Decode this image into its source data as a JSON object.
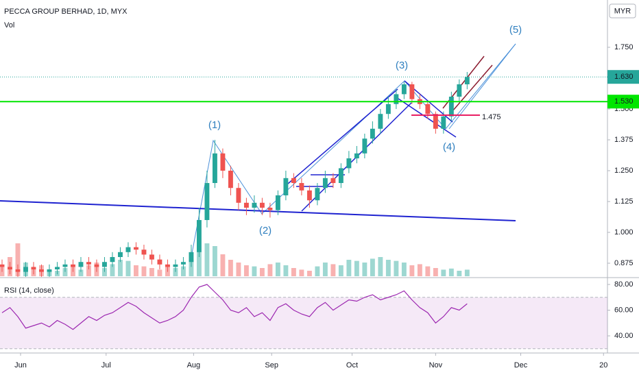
{
  "chart_data": {
    "type": "candlestick",
    "title": "PECCA GROUP BERHAD, 1D, MYX",
    "volume_label": "Vol",
    "currency": "MYR",
    "up_color": "#26a69a",
    "down_color": "#ef5350",
    "open": [
      0.87,
      0.86,
      0.85,
      0.84,
      0.86,
      0.85,
      0.84,
      0.85,
      0.86,
      0.87,
      0.86,
      0.88,
      0.87,
      0.86,
      0.88,
      0.9,
      0.92,
      0.94,
      0.93,
      0.91,
      0.89,
      0.87,
      0.86,
      0.87,
      0.88,
      0.92,
      1.05,
      1.2,
      1.32,
      1.25,
      1.18,
      1.12,
      1.1,
      1.12,
      1.1,
      1.09,
      1.15,
      1.22,
      1.2,
      1.17,
      1.13,
      1.18,
      1.22,
      1.2,
      1.26,
      1.3,
      1.32,
      1.38,
      1.42,
      1.48,
      1.52,
      1.56,
      1.6,
      1.54,
      1.52,
      1.48,
      1.42,
      1.47,
      1.55,
      1.6
    ],
    "high": [
      0.89,
      0.88,
      0.87,
      0.88,
      0.88,
      0.87,
      0.87,
      0.88,
      0.89,
      0.89,
      0.9,
      0.9,
      0.89,
      0.9,
      0.92,
      0.94,
      0.96,
      0.96,
      0.95,
      0.93,
      0.91,
      0.89,
      0.89,
      0.9,
      0.95,
      1.1,
      1.25,
      1.375,
      1.34,
      1.27,
      1.2,
      1.14,
      1.15,
      1.14,
      1.12,
      1.17,
      1.25,
      1.24,
      1.22,
      1.19,
      1.2,
      1.25,
      1.24,
      1.28,
      1.33,
      1.35,
      1.4,
      1.45,
      1.5,
      1.55,
      1.58,
      1.61,
      1.61,
      1.56,
      1.53,
      1.49,
      1.49,
      1.57,
      1.62,
      1.65
    ],
    "low": [
      0.84,
      0.83,
      0.82,
      0.82,
      0.83,
      0.82,
      0.82,
      0.83,
      0.84,
      0.84,
      0.84,
      0.85,
      0.84,
      0.84,
      0.86,
      0.88,
      0.9,
      0.91,
      0.89,
      0.87,
      0.85,
      0.84,
      0.84,
      0.85,
      0.86,
      0.9,
      1.02,
      1.18,
      1.22,
      1.15,
      1.09,
      1.07,
      1.08,
      1.07,
      1.06,
      1.07,
      1.13,
      1.18,
      1.15,
      1.1,
      1.11,
      1.16,
      1.18,
      1.18,
      1.24,
      1.28,
      1.3,
      1.36,
      1.4,
      1.46,
      1.5,
      1.54,
      1.52,
      1.5,
      1.46,
      1.4,
      1.4,
      1.45,
      1.53,
      1.58
    ],
    "close": [
      0.86,
      0.85,
      0.84,
      0.86,
      0.85,
      0.84,
      0.85,
      0.86,
      0.87,
      0.86,
      0.88,
      0.87,
      0.86,
      0.88,
      0.9,
      0.92,
      0.94,
      0.93,
      0.91,
      0.89,
      0.87,
      0.86,
      0.87,
      0.88,
      0.92,
      1.05,
      1.2,
      1.32,
      1.25,
      1.18,
      1.12,
      1.1,
      1.12,
      1.1,
      1.09,
      1.15,
      1.22,
      1.2,
      1.17,
      1.13,
      1.18,
      1.22,
      1.2,
      1.26,
      1.3,
      1.32,
      1.38,
      1.42,
      1.48,
      1.52,
      1.56,
      1.6,
      1.54,
      1.52,
      1.48,
      1.42,
      1.47,
      1.55,
      1.6,
      1.63
    ],
    "volume": [
      20,
      35,
      60,
      25,
      15,
      20,
      12,
      10,
      15,
      18,
      12,
      20,
      25,
      15,
      22,
      30,
      28,
      20,
      18,
      15,
      12,
      20,
      15,
      18,
      30,
      45,
      60,
      55,
      40,
      30,
      25,
      20,
      18,
      15,
      22,
      25,
      20,
      15,
      12,
      10,
      18,
      25,
      22,
      20,
      30,
      28,
      25,
      32,
      35,
      30,
      28,
      25,
      20,
      22,
      18,
      15,
      12,
      14,
      10,
      12
    ],
    "volume_ylim": [
      0,
      100
    ],
    "xlim": [
      -0.26,
      76.8
    ],
    "xticks": [
      {
        "value": 2.35,
        "label": "Jun"
      },
      {
        "value": 13.2,
        "label": "Jul"
      },
      {
        "value": 24.3,
        "label": "Aug"
      },
      {
        "value": 34.2,
        "label": "Sep"
      },
      {
        "value": 44.4,
        "label": "Oct"
      },
      {
        "value": 55.0,
        "label": "Nov"
      },
      {
        "value": 65.8,
        "label": "Dec"
      },
      {
        "value": 76.3,
        "label": "20"
      }
    ],
    "ylim": [
      0.8167,
      1.9417
    ],
    "yticks": [
      {
        "value": 0.875,
        "label": "0.875"
      },
      {
        "value": 1.0,
        "label": "1.000"
      },
      {
        "value": 1.125,
        "label": "1.125"
      },
      {
        "value": 1.25,
        "label": "1.250"
      },
      {
        "value": 1.375,
        "label": "1.375"
      },
      {
        "value": 1.5,
        "label": "1.500"
      },
      {
        "value": 1.75,
        "label": "1.750"
      }
    ],
    "last_price": {
      "value": 1.63,
      "label": "1.630"
    },
    "hline": {
      "value": 1.53,
      "label": "1.530",
      "color": "#00e600"
    },
    "level": {
      "value": 1.475,
      "label": "1.475",
      "color": "#e91e63"
    },
    "waves": [
      "(1)",
      "(2)",
      "(3)",
      "(4)",
      "(5)"
    ],
    "rsi": {
      "title": "RSI (14, close)",
      "color": "#9c27b0",
      "values": [
        58,
        62,
        55,
        46,
        48,
        50,
        47,
        52,
        49,
        45,
        50,
        55,
        52,
        56,
        58,
        62,
        66,
        63,
        58,
        54,
        50,
        52,
        55,
        60,
        70,
        78,
        80,
        74,
        68,
        60,
        58,
        62,
        55,
        58,
        52,
        62,
        65,
        60,
        57,
        55,
        62,
        66,
        60,
        64,
        68,
        67,
        70,
        72,
        68,
        70,
        72,
        75,
        68,
        62,
        58,
        50,
        55,
        62,
        60,
        65
      ],
      "ylim": [
        26.67,
        85.33
      ],
      "yticks": [
        {
          "value": 40,
          "label": "40.00"
        },
        {
          "value": 60,
          "label": "60.00"
        },
        {
          "value": 80,
          "label": "80.00"
        }
      ],
      "bands": [
        30,
        70
      ]
    }
  }
}
